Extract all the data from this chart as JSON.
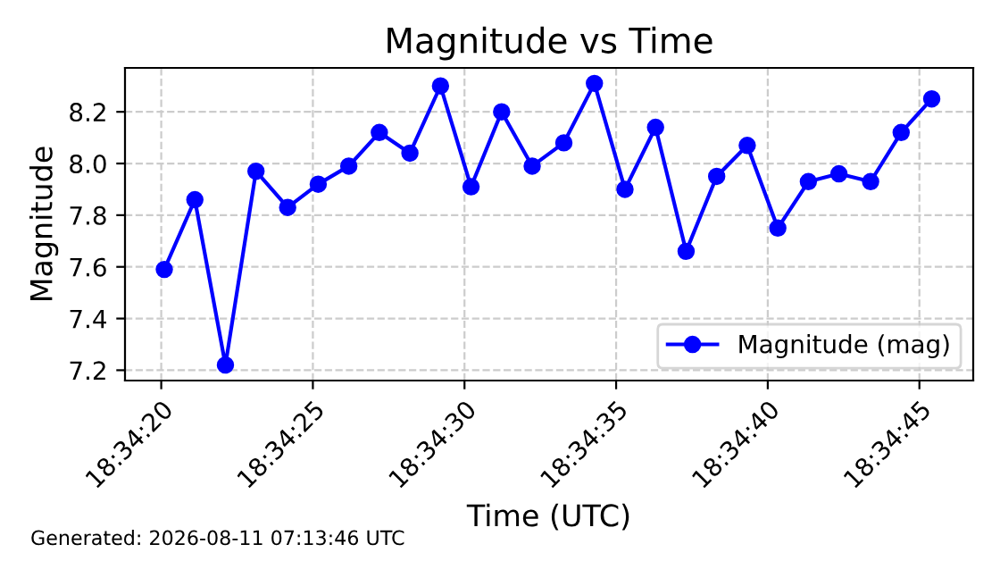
{
  "chart_data": {
    "type": "line",
    "title": "Magnitude vs Time",
    "xlabel": "Time (UTC)",
    "ylabel": "Magnitude",
    "x": [
      18.57225,
      18.57253,
      18.57281,
      18.57309,
      18.57338,
      18.57366,
      18.57394,
      18.57422,
      18.5745,
      18.57478,
      18.57506,
      18.57534,
      18.57562,
      18.57591,
      18.57619,
      18.57647,
      18.57675,
      18.57703,
      18.57731,
      18.57759,
      18.57787,
      18.57815,
      18.57843,
      18.57872,
      18.579,
      18.57928
    ],
    "series": [
      {
        "name": "Magnitude (mag)",
        "color": "#0000ff",
        "values": [
          7.59,
          7.86,
          7.22,
          7.97,
          7.83,
          7.92,
          7.99,
          8.12,
          8.04,
          8.3,
          7.91,
          8.2,
          7.99,
          8.08,
          8.31,
          7.9,
          8.14,
          7.66,
          7.95,
          8.07,
          7.75,
          7.93,
          7.96,
          7.93,
          8.12,
          8.25
        ]
      }
    ],
    "xlim": [
      18.57189,
      18.57966
    ],
    "ylim": [
      7.16,
      8.37
    ],
    "xticks": [
      {
        "value": 18.572222,
        "label": "18:34:20"
      },
      {
        "value": 18.573611,
        "label": "18:34:25"
      },
      {
        "value": 18.575,
        "label": "18:34:30"
      },
      {
        "value": 18.576389,
        "label": "18:34:35"
      },
      {
        "value": 18.577778,
        "label": "18:34:40"
      },
      {
        "value": 18.579167,
        "label": "18:34:45"
      }
    ],
    "yticks": [
      7.2,
      7.4,
      7.6,
      7.8,
      {
        "value": 8,
        "label": "8.0"
      },
      8.2
    ],
    "grid": true,
    "legend": "bottom right",
    "marker": "circle",
    "line_style": "solid",
    "annotations": [
      "Generated: 2026-08-11 07:13:46 UTC"
    ]
  }
}
